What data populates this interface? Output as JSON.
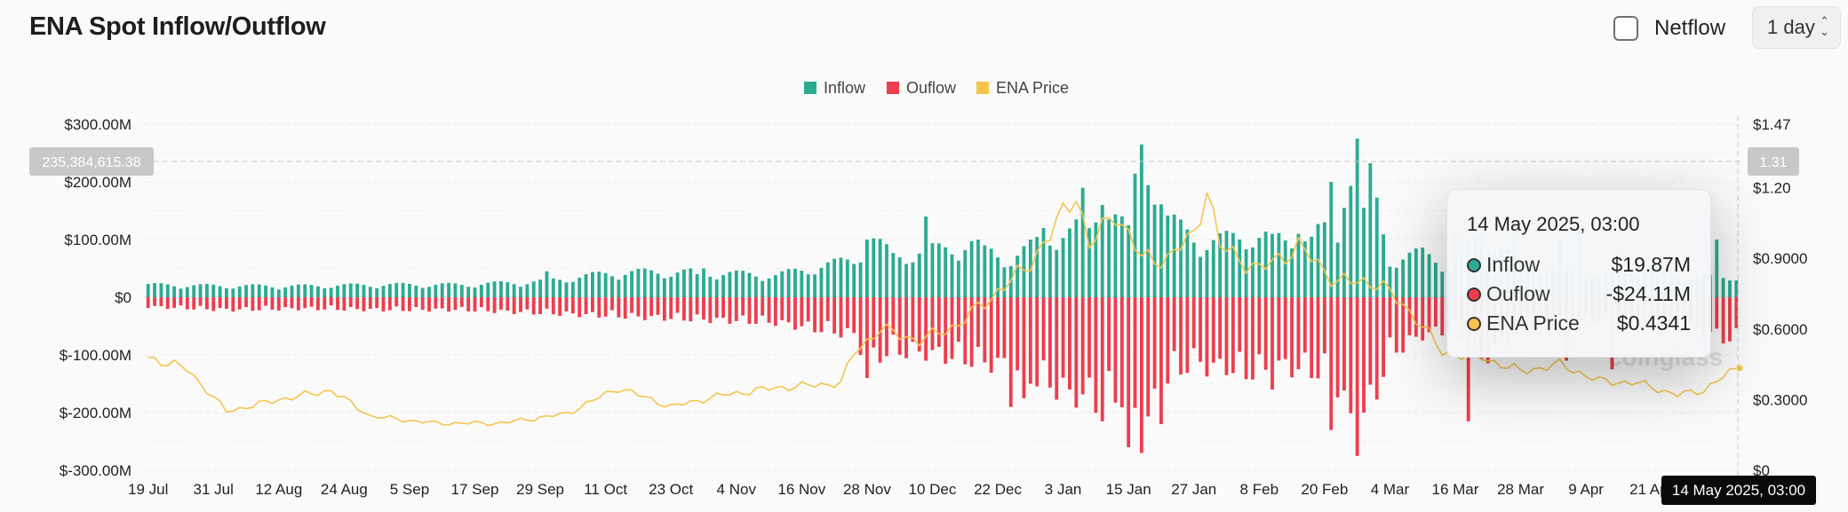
{
  "header": {
    "title": "ENA Spot Inflow/Outflow",
    "netflow_label": "Netflow",
    "interval": "1 day"
  },
  "chart_data": {
    "type": "bar",
    "legend": [
      {
        "name": "Inflow",
        "color": "#2bab92"
      },
      {
        "name": "Ouflow",
        "color": "#ee3d4d"
      },
      {
        "name": "ENA Price",
        "color": "#f4c54d"
      }
    ],
    "y_left": {
      "ticks": [
        "$-300.00M",
        "$-200.00M",
        "$-100.00M",
        "$0",
        "$100.00M",
        "$200.00M",
        "$300.00M"
      ],
      "range": [
        -300,
        300
      ]
    },
    "y_right": {
      "ticks": [
        "$0",
        "$0.3000",
        "$0.6000",
        "$0.9000",
        "$1.20",
        "$1.47"
      ],
      "range": [
        0,
        1.47
      ]
    },
    "x_ticks": [
      "19 Jul",
      "31 Jul",
      "12 Aug",
      "24 Aug",
      "5 Sep",
      "17 Sep",
      "29 Sep",
      "11 Oct",
      "23 Oct",
      "4 Nov",
      "16 Nov",
      "28 Nov",
      "10 Dec",
      "22 Dec",
      "3 Jan",
      "15 Jan",
      "27 Jan",
      "8 Feb",
      "20 Feb",
      "4 Mar",
      "16 Mar",
      "28 Mar",
      "9 Apr",
      "21 Apr"
    ],
    "inflow_keys": [
      [
        0,
        20
      ],
      [
        12,
        18
      ],
      [
        24,
        18
      ],
      [
        36,
        20
      ],
      [
        48,
        20
      ],
      [
        60,
        25
      ],
      [
        72,
        40
      ],
      [
        84,
        40
      ],
      [
        96,
        35
      ],
      [
        108,
        60
      ],
      [
        110,
        100
      ],
      [
        114,
        65
      ],
      [
        120,
        75
      ],
      [
        126,
        85
      ],
      [
        132,
        60
      ],
      [
        138,
        100
      ],
      [
        144,
        105
      ],
      [
        146,
        160
      ],
      [
        150,
        100
      ],
      [
        152,
        260
      ],
      [
        156,
        120
      ],
      [
        160,
        100
      ],
      [
        162,
        85
      ],
      [
        168,
        100
      ],
      [
        174,
        90
      ],
      [
        180,
        105
      ],
      [
        182,
        95
      ],
      [
        185,
        270
      ],
      [
        190,
        60
      ],
      [
        195,
        70
      ],
      [
        200,
        50
      ],
      [
        204,
        105
      ],
      [
        210,
        55
      ],
      [
        216,
        40
      ],
      [
        222,
        35
      ],
      [
        228,
        45
      ],
      [
        234,
        35
      ],
      [
        240,
        30
      ],
      [
        243,
        35
      ]
    ],
    "inflow_spikes": [
      [
        61,
        45
      ],
      [
        84,
        40
      ],
      [
        85,
        50
      ],
      [
        110,
        100
      ],
      [
        119,
        140
      ],
      [
        128,
        90
      ],
      [
        137,
        120
      ],
      [
        142,
        135
      ],
      [
        143,
        190
      ],
      [
        146,
        160
      ],
      [
        152,
        265
      ],
      [
        172,
        110
      ],
      [
        176,
        110
      ],
      [
        178,
        105
      ],
      [
        181,
        200
      ],
      [
        183,
        155
      ],
      [
        185,
        275
      ],
      [
        186,
        155
      ],
      [
        200,
        105
      ],
      [
        209,
        105
      ],
      [
        216,
        100
      ],
      [
        219,
        115
      ],
      [
        240,
        100
      ]
    ],
    "outflow_keys": [
      [
        0,
        -15
      ],
      [
        12,
        -20
      ],
      [
        24,
        -18
      ],
      [
        36,
        -20
      ],
      [
        48,
        -20
      ],
      [
        60,
        -25
      ],
      [
        72,
        -30
      ],
      [
        84,
        -35
      ],
      [
        96,
        -40
      ],
      [
        108,
        -60
      ],
      [
        110,
        -100
      ],
      [
        114,
        -85
      ],
      [
        120,
        -90
      ],
      [
        126,
        -100
      ],
      [
        132,
        -110
      ],
      [
        138,
        -140
      ],
      [
        144,
        -160
      ],
      [
        146,
        -170
      ],
      [
        150,
        -150
      ],
      [
        152,
        -220
      ],
      [
        156,
        -130
      ],
      [
        160,
        -100
      ],
      [
        162,
        -110
      ],
      [
        168,
        -120
      ],
      [
        174,
        -110
      ],
      [
        180,
        -120
      ],
      [
        182,
        -140
      ],
      [
        185,
        -230
      ],
      [
        190,
        -90
      ],
      [
        195,
        -60
      ],
      [
        200,
        -50
      ],
      [
        204,
        -100
      ],
      [
        210,
        -50
      ],
      [
        216,
        -40
      ],
      [
        222,
        -35
      ],
      [
        228,
        -40
      ],
      [
        234,
        -45
      ],
      [
        240,
        -60
      ],
      [
        243,
        -70
      ]
    ],
    "outflow_spikes": [
      [
        110,
        -140
      ],
      [
        119,
        -110
      ],
      [
        132,
        -190
      ],
      [
        134,
        -175
      ],
      [
        141,
        -160
      ],
      [
        146,
        -215
      ],
      [
        150,
        -260
      ],
      [
        152,
        -270
      ],
      [
        155,
        -220
      ],
      [
        165,
        -135
      ],
      [
        172,
        -160
      ],
      [
        181,
        -230
      ],
      [
        185,
        -275
      ],
      [
        186,
        -200
      ],
      [
        202,
        -215
      ],
      [
        217,
        -110
      ],
      [
        224,
        -125
      ],
      [
        241,
        -80
      ]
    ],
    "price_keys": [
      [
        0,
        0.48
      ],
      [
        6,
        0.43
      ],
      [
        12,
        0.25
      ],
      [
        20,
        0.3
      ],
      [
        28,
        0.34
      ],
      [
        34,
        0.23
      ],
      [
        44,
        0.2
      ],
      [
        54,
        0.2
      ],
      [
        64,
        0.24
      ],
      [
        72,
        0.35
      ],
      [
        80,
        0.27
      ],
      [
        88,
        0.32
      ],
      [
        96,
        0.35
      ],
      [
        106,
        0.37
      ],
      [
        108,
        0.5
      ],
      [
        112,
        0.6
      ],
      [
        118,
        0.55
      ],
      [
        124,
        0.62
      ],
      [
        130,
        0.76
      ],
      [
        134,
        0.85
      ],
      [
        138,
        1.0
      ],
      [
        142,
        1.18
      ],
      [
        144,
        0.95
      ],
      [
        148,
        1.1
      ],
      [
        152,
        0.9
      ],
      [
        156,
        0.9
      ],
      [
        160,
        1.0
      ],
      [
        162,
        1.2
      ],
      [
        164,
        0.95
      ],
      [
        170,
        0.85
      ],
      [
        176,
        0.95
      ],
      [
        182,
        0.8
      ],
      [
        188,
        0.8
      ],
      [
        194,
        0.65
      ],
      [
        198,
        0.5
      ],
      [
        204,
        0.48
      ],
      [
        210,
        0.42
      ],
      [
        216,
        0.45
      ],
      [
        222,
        0.38
      ],
      [
        228,
        0.37
      ],
      [
        234,
        0.32
      ],
      [
        238,
        0.34
      ],
      [
        240,
        0.38
      ],
      [
        243,
        0.43
      ]
    ],
    "crosshair": {
      "left_value": "235,384,615.38",
      "right_value": "1.31",
      "date": "14 May 2025, 03:00"
    },
    "watermark": "coinglass"
  },
  "tooltip": {
    "title": "14 May 2025, 03:00",
    "rows": [
      {
        "name": "Inflow",
        "value": "$19.87M",
        "color": "#2bab92"
      },
      {
        "name": "Ouflow",
        "value": "-$24.11M",
        "color": "#ee3d4d"
      },
      {
        "name": "ENA Price",
        "value": "$0.4341",
        "color": "#f4c54d"
      }
    ]
  }
}
